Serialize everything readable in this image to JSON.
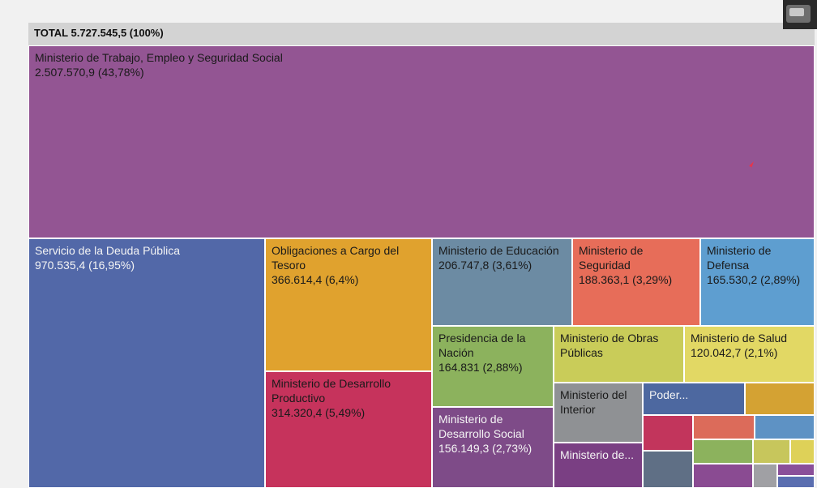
{
  "header": {
    "total_label": "TOTAL 5.727.545,5 (100%)"
  },
  "chart_data": {
    "type": "treemap",
    "title": "TOTAL 5.727.545,5 (100%)",
    "total": 5727545.5,
    "items": [
      {
        "name": "Ministerio de Trabajo, Empleo y Seguridad Social",
        "value": "2.507.570,9 (43,78%)",
        "amount": 2507570.9,
        "percent": 43.78,
        "color": "#935593"
      },
      {
        "name": "Servicio de la Deuda Pública",
        "value": "970.535,4 (16,95%)",
        "amount": 970535.4,
        "percent": 16.95,
        "color": "#5268a8"
      },
      {
        "name": "Obligaciones a Cargo del Tesoro",
        "value": "366.614,4 (6,4%)",
        "amount": 366614.4,
        "percent": 6.4,
        "color": "#e0a22e"
      },
      {
        "name": "Ministerio de Desarrollo Productivo",
        "value": "314.320,4 (5,49%)",
        "amount": 314320.4,
        "percent": 5.49,
        "color": "#c6335c"
      },
      {
        "name": "Ministerio de Educación",
        "value": "206.747,8 (3,61%)",
        "amount": 206747.8,
        "percent": 3.61,
        "color": "#6c8ba3"
      },
      {
        "name": "Ministerio de Seguridad",
        "value": "188.363,1 (3,29%)",
        "amount": 188363.1,
        "percent": 3.29,
        "color": "#e76d59"
      },
      {
        "name": "Ministerio de Defensa",
        "value": "165.530,2 (2,89%)",
        "amount": 165530.2,
        "percent": 2.89,
        "color": "#5e9ed0"
      },
      {
        "name": "Presidencia de la Nación",
        "value": "164.831 (2,88%)",
        "amount": 164831,
        "percent": 2.88,
        "color": "#8cb25d"
      },
      {
        "name": "Ministerio de Desarrollo Social",
        "value": "156.149,3 (2,73%)",
        "amount": 156149.3,
        "percent": 2.73,
        "color": "#7e4b88"
      },
      {
        "name": "Ministerio de Obras Públicas",
        "value": "",
        "color": "#c9cc59"
      },
      {
        "name": "Ministerio de Salud",
        "value": "120.042,7 (2,1%)",
        "amount": 120042.7,
        "percent": 2.1,
        "color": "#e2d864"
      },
      {
        "name": "Ministerio del Interior",
        "value": "",
        "color": "#8f9194"
      },
      {
        "name": "Poder...",
        "value": "",
        "color": "#4d68a0"
      },
      {
        "name": "Ministerio de...",
        "value": "",
        "color": "#7a3f83"
      }
    ],
    "unlabeled_colors": [
      "#d4a233",
      "#c2355c",
      "#dc6b5a",
      "#5e92c4",
      "#8cb25d",
      "#c7c65c",
      "#ded158",
      "#5f6f85",
      "#8a4b92",
      "#a0a0a4",
      "#8a4f99",
      "#5a6eb0"
    ]
  }
}
